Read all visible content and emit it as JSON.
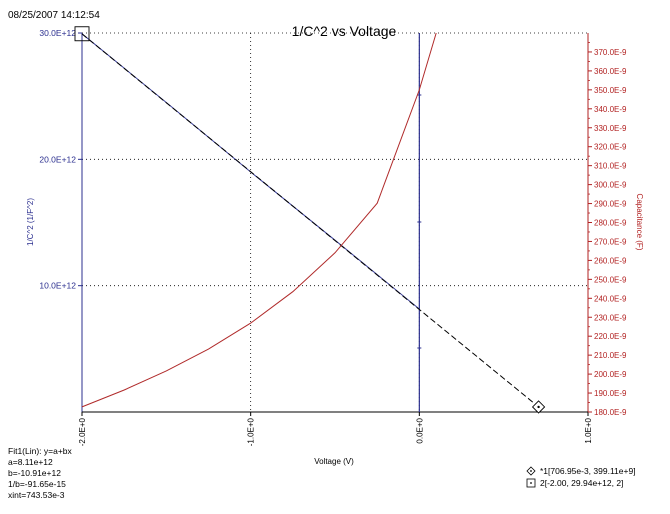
{
  "timestamp": "08/25/2007 14:12:54",
  "colors": {
    "left_axis": "#2b2f8f",
    "right_axis": "#b22222",
    "capacitance_curve": "#b02a2a",
    "fit_line": "#000000",
    "data_line": "#3a3f9a",
    "marker_line": "#2b2f8f",
    "grid": "#000000"
  },
  "chart_data": {
    "type": "line",
    "title": "1/C^2 vs Voltage",
    "xlabel": "Voltage (V)",
    "ylabel_left": "1/C^2 (1/F^2)",
    "ylabel_right": "Capacitance (F)",
    "xlim": [
      -2.0,
      1.0
    ],
    "ylim_left": [
      0,
      30000000000000.0
    ],
    "ylim_right": [
      1.8e-07,
      3.8e-07
    ],
    "x_ticks": [
      -2.0,
      -1.0,
      0.0,
      1.0
    ],
    "x_tick_labels": [
      "-2.0E+0",
      "-1.0E+0",
      "0.0E+0",
      "1.0E+0"
    ],
    "y_left_ticks": [
      10000000000000.0,
      20000000000000.0,
      30000000000000.0
    ],
    "y_left_tick_labels": [
      "10.0E+12",
      "20.0E+12",
      "30.0E+12"
    ],
    "y_right_ticks": [
      180,
      190,
      200,
      210,
      220,
      230,
      240,
      250,
      260,
      270,
      280,
      290,
      300,
      310,
      320,
      330,
      340,
      350,
      360,
      370
    ],
    "y_right_tick_labels": [
      "180.0E-9",
      "190.0E-9",
      "200.0E-9",
      "210.0E-9",
      "220.0E-9",
      "230.0E-9",
      "240.0E-9",
      "250.0E-9",
      "260.0E-9",
      "270.0E-9",
      "280.0E-9",
      "290.0E-9",
      "300.0E-9",
      "310.0E-9",
      "320.0E-9",
      "330.0E-9",
      "340.0E-9",
      "350.0E-9",
      "360.0E-9",
      "370.0E-9"
    ],
    "grid": true,
    "series": [
      {
        "axis": "left",
        "style": "solid",
        "x": [
          -2.0,
          -1.5,
          -1.0,
          -0.5,
          0.0
        ],
        "y": [
          29940000000000.0,
          24500000000000.0,
          19000000000000.0,
          13600000000000.0,
          8150000000000.0
        ]
      },
      {
        "axis": "left",
        "style": "dashed",
        "x": [
          -2.0,
          0.707
        ],
        "y": [
          29930000000000.0,
          400000000000.0
        ]
      },
      {
        "axis": "right",
        "style": "solid",
        "x": [
          -2.0,
          -1.75,
          -1.5,
          -1.25,
          -1.0,
          -0.75,
          -0.5,
          -0.25,
          0.0,
          0.1
        ],
        "y": [
          182.7,
          191.6,
          201.7,
          213.2,
          226.9,
          243.5,
          264.0,
          290.2,
          350.0,
          380.0
        ]
      }
    ],
    "vertical_marker_x": 0.0,
    "markers": [
      {
        "shape": "diamond",
        "x": 0.707,
        "y": 400000000000.0
      },
      {
        "shape": "square",
        "x": -2.0,
        "y": 29940000000000.0
      }
    ]
  },
  "fit_info": {
    "lines": [
      "Fit1(Lin):  y=a+bx",
      "a=8.11e+12",
      "b=-10.91e+12",
      "1/b=-91.65e-15",
      "xint=743.53e-3"
    ]
  },
  "legend": {
    "items": [
      {
        "symbol": "diamond",
        "text": "*1[706.95e-3, 399.11e+9]"
      },
      {
        "symbol": "square",
        "text": "2[-2.00, 29.94e+12, 2]"
      }
    ]
  }
}
